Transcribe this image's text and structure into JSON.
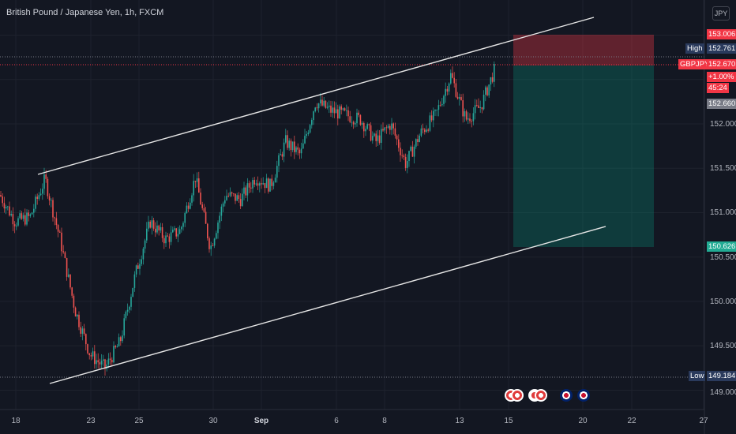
{
  "header": {
    "title": "British Pound / Japanese Yen, 1h, FXCM"
  },
  "currency_button": "JPY",
  "price_axis": {
    "ticks": [
      "152.000",
      "151.500",
      "151.000",
      "150.500",
      "150.000",
      "149.500",
      "149.000"
    ]
  },
  "labels": {
    "target_price": "153.006",
    "high_tag": "High",
    "high_price": "152.761",
    "symbol": "GBPJPY",
    "last_price": "152.670",
    "change": "+1.00%",
    "countdown": "45:24",
    "bid_price": "152.660",
    "stop_price": "150.626",
    "low_tag": "Low",
    "low_price": "149.184"
  },
  "time_axis": {
    "labels": [
      {
        "text": "18",
        "bold": false
      },
      {
        "text": "23",
        "bold": false
      },
      {
        "text": "25",
        "bold": false
      },
      {
        "text": "30",
        "bold": false
      },
      {
        "text": "Sep",
        "bold": true
      },
      {
        "text": "6",
        "bold": false
      },
      {
        "text": "8",
        "bold": false
      },
      {
        "text": "13",
        "bold": false
      },
      {
        "text": "15",
        "bold": false
      },
      {
        "text": "20",
        "bold": false
      },
      {
        "text": "22",
        "bold": false
      },
      {
        "text": "27",
        "bold": false
      }
    ]
  },
  "colors": {
    "background": "#131722",
    "up_candle": "#26a69a",
    "down_candle": "#ef5350",
    "profit_zone": "#1f5f5b",
    "loss_zone": "#7a2e32",
    "channel_line": "#ffffff",
    "price_label_red": "#f23645",
    "price_label_blue": "#2a3a5c",
    "stop_label": "#22ab94"
  },
  "chart_data": {
    "type": "candlestick",
    "symbol": "GBPJPY",
    "timeframe": "1h",
    "ylim": [
      148.9,
      153.3
    ],
    "channel": {
      "upper": [
        {
          "x": "Aug 20",
          "y": 151.43
        },
        {
          "x": "Sep 20",
          "y": 153.13
        }
      ],
      "lower": [
        {
          "x": "Aug 20",
          "y": 149.06
        },
        {
          "x": "Sep 21",
          "y": 150.85
        }
      ]
    },
    "position": {
      "side": "short",
      "stop": 153.006,
      "entry": 152.67,
      "target": 150.626
    },
    "path": [
      {
        "t": "Aug 17",
        "p": 151.2
      },
      {
        "t": "Aug 18",
        "p": 150.9
      },
      {
        "t": "Aug 19",
        "p": 150.95
      },
      {
        "t": "Aug 20",
        "p": 151.38
      },
      {
        "t": "Aug 21",
        "p": 150.7
      },
      {
        "t": "Aug 21",
        "p": 149.9
      },
      {
        "t": "Aug 22",
        "p": 149.4
      },
      {
        "t": "Aug 22",
        "p": 149.25
      },
      {
        "t": "Aug 23",
        "p": 149.55
      },
      {
        "t": "Aug 24",
        "p": 150.3
      },
      {
        "t": "Aug 24",
        "p": 150.9
      },
      {
        "t": "Aug 25",
        "p": 150.7
      },
      {
        "t": "Aug 26",
        "p": 150.8
      },
      {
        "t": "Aug 27",
        "p": 151.4
      },
      {
        "t": "Aug 28",
        "p": 150.6
      },
      {
        "t": "Aug 29",
        "p": 151.2
      },
      {
        "t": "Aug 30",
        "p": 151.15
      },
      {
        "t": "Aug 31",
        "p": 151.4
      },
      {
        "t": "Sep 1",
        "p": 151.3
      },
      {
        "t": "Sep 2",
        "p": 151.8
      },
      {
        "t": "Sep 3",
        "p": 151.65
      },
      {
        "t": "Sep 4",
        "p": 152.25
      },
      {
        "t": "Sep 5",
        "p": 152.15
      },
      {
        "t": "Sep 6",
        "p": 152.1
      },
      {
        "t": "Sep 7",
        "p": 152.05
      },
      {
        "t": "Sep 8",
        "p": 151.8
      },
      {
        "t": "Sep 9",
        "p": 152.0
      },
      {
        "t": "Sep 10",
        "p": 151.55
      },
      {
        "t": "Sep 11",
        "p": 151.9
      },
      {
        "t": "Sep 12",
        "p": 152.1
      },
      {
        "t": "Sep 12",
        "p": 152.55
      },
      {
        "t": "Sep 13",
        "p": 152.05
      },
      {
        "t": "Sep 14",
        "p": 152.2
      },
      {
        "t": "Sep 15",
        "p": 152.65
      }
    ]
  }
}
